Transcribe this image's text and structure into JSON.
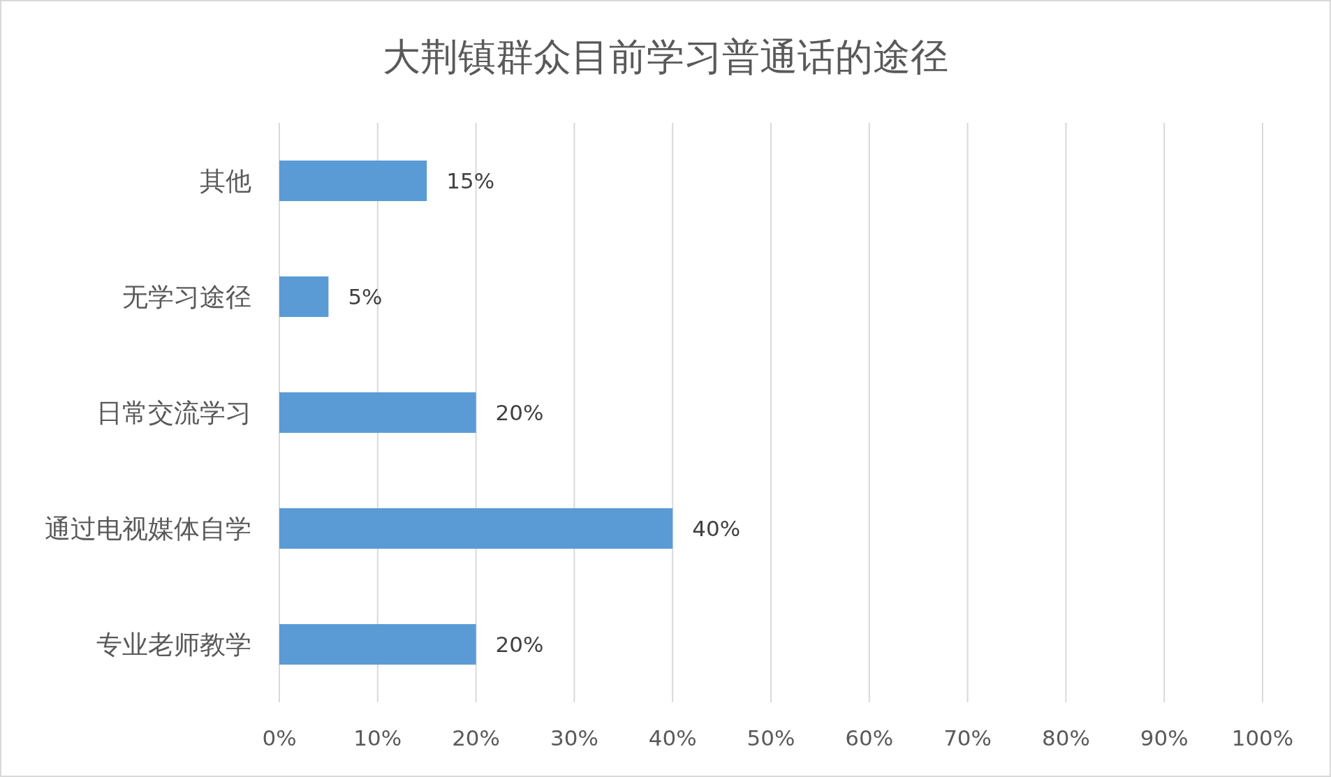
{
  "chart_data": {
    "type": "bar",
    "orientation": "horizontal",
    "title": "大荆镇群众目前学习普通话的途径",
    "categories": [
      "其他",
      "无学习途径",
      "日常交流学习",
      "通过电视媒体自学",
      "专业老师教学"
    ],
    "values": [
      15,
      5,
      20,
      40,
      20
    ],
    "value_labels": [
      "15%",
      "5%",
      "20%",
      "40%",
      "20%"
    ],
    "color": "#5b9bd5",
    "xlim": [
      0,
      100
    ],
    "xticks": [
      {
        "value": 0,
        "label": "0%"
      },
      {
        "value": 10,
        "label": "10%"
      },
      {
        "value": 20,
        "label": "20%"
      },
      {
        "value": 30,
        "label": "30%"
      },
      {
        "value": 40,
        "label": "40%"
      },
      {
        "value": 50,
        "label": "50%"
      },
      {
        "value": 60,
        "label": "60%"
      },
      {
        "value": 70,
        "label": "70%"
      },
      {
        "value": 80,
        "label": "80%"
      },
      {
        "value": 90,
        "label": "90%"
      },
      {
        "value": 100,
        "label": "100%"
      }
    ],
    "grid": "x"
  }
}
